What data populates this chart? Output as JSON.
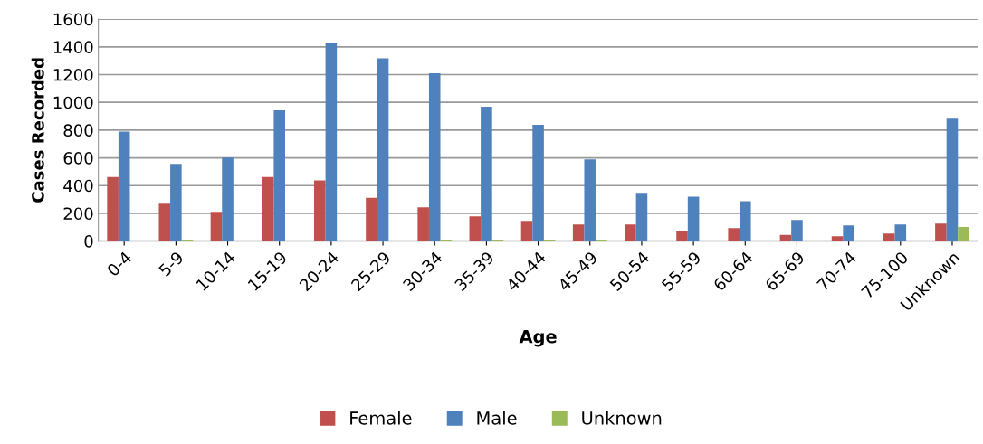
{
  "chart_data": {
    "type": "bar",
    "xlabel": "Age",
    "ylabel": "Cases Recorded",
    "categories": [
      "0-4",
      "5-9",
      "10-14",
      "15-19",
      "20-24",
      "25-29",
      "30-34",
      "35-39",
      "40-44",
      "45-49",
      "50-54",
      "55-59",
      "60-64",
      "65-69",
      "70-74",
      "75-100",
      "Unknown"
    ],
    "series": [
      {
        "name": "Female",
        "color": "#c0504d",
        "values": [
          462,
          270,
          211,
          462,
          438,
          312,
          244,
          179,
          146,
          120,
          120,
          70,
          94,
          44,
          35,
          55,
          126
        ]
      },
      {
        "name": "Male",
        "color": "#4f81bd",
        "values": [
          789,
          556,
          602,
          942,
          1428,
          1317,
          1210,
          968,
          839,
          589,
          347,
          320,
          288,
          153,
          113,
          120,
          883
        ]
      },
      {
        "name": "Unknown",
        "color": "#9bbb59",
        "values": [
          0,
          10,
          0,
          0,
          0,
          0,
          10,
          10,
          10,
          10,
          0,
          0,
          0,
          0,
          0,
          0,
          102
        ]
      }
    ],
    "ylim": [
      0,
      1600
    ],
    "yticks": [
      0,
      200,
      400,
      600,
      800,
      1000,
      1200,
      1400,
      1600
    ],
    "grid": "y",
    "legend": "bottom"
  }
}
